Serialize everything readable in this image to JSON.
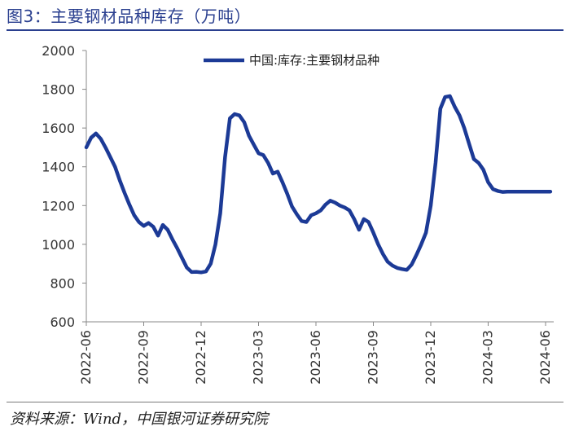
{
  "figure": {
    "title": "图3：主要钢材品种库存（万吨）",
    "source": "资料来源：Wind，中国银河证券研究院"
  },
  "colors": {
    "series": "#1c3a96",
    "axis": "#888888",
    "accent": "#2a3f8f"
  },
  "chart_data": {
    "type": "line",
    "title": "",
    "xlabel": "",
    "ylabel": "",
    "legend_position": "top-center",
    "grid": false,
    "ylim": [
      600,
      2000
    ],
    "yticks": [
      600,
      800,
      1000,
      1200,
      1400,
      1600,
      1800,
      2000
    ],
    "xticks": [
      "2022-06",
      "2022-09",
      "2022-12",
      "2023-03",
      "2023-06",
      "2023-09",
      "2023-12",
      "2024-03",
      "2024-06"
    ],
    "x_unit": "month",
    "series": [
      {
        "name": "中国:库存:主要钢材品种",
        "x": [
          0,
          0.25,
          0.5,
          0.75,
          1.0,
          1.25,
          1.5,
          1.75,
          2.0,
          2.25,
          2.5,
          2.75,
          3.0,
          3.25,
          3.5,
          3.75,
          4.0,
          4.25,
          4.5,
          4.75,
          5.0,
          5.25,
          5.5,
          5.75,
          6.0,
          6.25,
          6.5,
          6.75,
          7.0,
          7.25,
          7.5,
          7.75,
          8.0,
          8.25,
          8.5,
          8.75,
          9.0,
          9.25,
          9.5,
          9.75,
          10.0,
          10.25,
          10.5,
          10.75,
          11.0,
          11.25,
          11.5,
          11.75,
          12.0,
          12.25,
          12.5,
          12.75,
          13.0,
          13.25,
          13.5,
          13.75,
          14.0,
          14.25,
          14.5,
          14.75,
          15.0,
          15.25,
          15.5,
          15.75,
          16.0,
          16.25,
          16.5,
          16.75,
          17.0,
          17.25,
          17.5,
          17.75,
          18.0,
          18.25,
          18.5,
          18.75,
          19.0,
          19.25,
          19.5,
          19.75,
          20.0,
          20.25,
          20.5,
          20.75,
          21.0,
          21.25,
          21.5,
          21.75,
          22.0,
          22.25,
          22.5,
          22.75,
          23.0,
          23.25,
          23.5,
          23.75,
          24.0,
          24.25
        ],
        "values": [
          1500,
          1550,
          1572,
          1545,
          1500,
          1450,
          1400,
          1330,
          1265,
          1205,
          1150,
          1115,
          1095,
          1110,
          1090,
          1045,
          1100,
          1075,
          1025,
          980,
          930,
          880,
          857,
          858,
          855,
          860,
          900,
          1000,
          1160,
          1450,
          1650,
          1672,
          1665,
          1630,
          1560,
          1515,
          1470,
          1460,
          1420,
          1365,
          1375,
          1320,
          1260,
          1195,
          1155,
          1120,
          1115,
          1150,
          1160,
          1175,
          1205,
          1225,
          1215,
          1200,
          1190,
          1175,
          1130,
          1075,
          1130,
          1115,
          1060,
          1000,
          950,
          910,
          890,
          878,
          872,
          868,
          895,
          945,
          1000,
          1060,
          1200,
          1420,
          1700,
          1760,
          1765,
          1710,
          1665,
          1600,
          1520,
          1440,
          1420,
          1385,
          1320,
          1285,
          1275,
          1270,
          1272,
          1272,
          1272,
          1272,
          1272,
          1272,
          1272,
          1272,
          1272,
          1272
        ]
      }
    ]
  }
}
